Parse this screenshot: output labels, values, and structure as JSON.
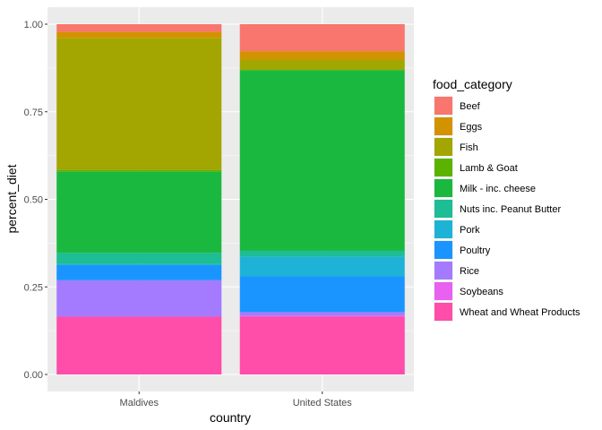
{
  "chart_data": {
    "type": "bar",
    "stacked": true,
    "categories": [
      "Maldives",
      "United States"
    ],
    "xlabel": "country",
    "ylabel": "percent_diet",
    "ylim": [
      0,
      1
    ],
    "yticks": [
      "0.00",
      "0.25",
      "0.50",
      "0.75",
      "1.00"
    ],
    "legend_title": "food_category",
    "legend_position": "right",
    "grid": true,
    "series": [
      {
        "name": "Beef",
        "color": "#F8766D",
        "values": [
          0.022,
          0.077
        ]
      },
      {
        "name": "Eggs",
        "color": "#D39200",
        "values": [
          0.017,
          0.024
        ]
      },
      {
        "name": "Fish",
        "color": "#A3A500",
        "values": [
          0.377,
          0.028
        ]
      },
      {
        "name": "Lamb & Goat",
        "color": "#5BB300",
        "values": [
          0.005,
          0.003
        ]
      },
      {
        "name": "Milk - inc. cheese",
        "color": "#1BB840",
        "values": [
          0.232,
          0.515
        ]
      },
      {
        "name": "Nuts inc. Peanut Butter",
        "color": "#1DBD95",
        "values": [
          0.032,
          0.017
        ]
      },
      {
        "name": "Pork",
        "color": "#1EB3D6",
        "values": [
          0.003,
          0.056
        ]
      },
      {
        "name": "Poultry",
        "color": "#1A95FF",
        "values": [
          0.043,
          0.102
        ]
      },
      {
        "name": "Rice",
        "color": "#A47BFF",
        "values": [
          0.104,
          0.01
        ]
      },
      {
        "name": "Soybeans",
        "color": "#E961F0",
        "values": [
          0.0,
          0.003
        ]
      },
      {
        "name": "Wheat and Wheat Products",
        "color": "#FF4DAA",
        "values": [
          0.165,
          0.165
        ]
      }
    ]
  }
}
